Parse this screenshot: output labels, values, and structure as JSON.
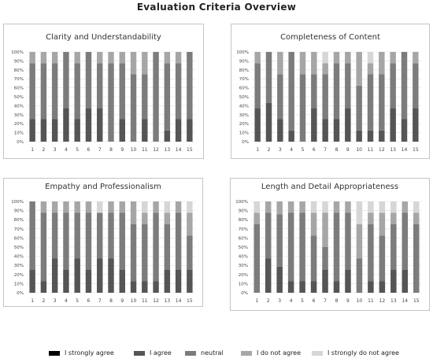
{
  "title": "Evaluation Criteria Overview",
  "colors": {
    "I strongly agree": "#000000",
    "I agree": "#555555",
    "neutral": "#7c7c7c",
    "I do not agree": "#a6a6a6",
    "I strongly do not agree": "#d6d6d6"
  },
  "legend": [
    "I strongly agree",
    "I agree",
    "neutral",
    "I do not agree",
    "I strongly do not agree"
  ],
  "chart_data": [
    {
      "type": "bar",
      "stacked": true,
      "title": "Clarity and Understandability",
      "categories": [
        "1",
        "2",
        "3",
        "4",
        "5",
        "6",
        "7",
        "8",
        "9",
        "10",
        "11",
        "12",
        "13",
        "14",
        "15"
      ],
      "yticks": [
        "0%",
        "10%",
        "20%",
        "30%",
        "40%",
        "50%",
        "60%",
        "70%",
        "80%",
        "90%",
        "100%"
      ],
      "ylim": [
        0,
        100
      ],
      "series": [
        {
          "name": "I strongly agree",
          "values": [
            0,
            0,
            0,
            0,
            0,
            0,
            0,
            0,
            0,
            0,
            0,
            0,
            0,
            0,
            0
          ]
        },
        {
          "name": "I agree",
          "values": [
            25,
            25,
            25,
            37.5,
            25,
            37.5,
            37.5,
            0,
            25,
            0,
            25,
            0,
            12.5,
            25,
            25
          ]
        },
        {
          "name": "neutral",
          "values": [
            62.5,
            62.5,
            62.5,
            62.5,
            62.5,
            62.5,
            50,
            87.5,
            62.5,
            75,
            50,
            100,
            75,
            62.5,
            75
          ]
        },
        {
          "name": "I do not agree",
          "values": [
            12.5,
            12.5,
            12.5,
            0,
            12.5,
            0,
            12.5,
            12.5,
            12.5,
            25,
            25,
            0,
            12.5,
            12.5,
            0
          ]
        },
        {
          "name": "I strongly do not agree",
          "values": [
            0,
            0,
            0,
            0,
            0,
            0,
            0,
            0,
            0,
            0,
            0,
            0,
            0,
            0,
            0
          ]
        }
      ]
    },
    {
      "type": "bar",
      "stacked": true,
      "title": "Completeness of Content",
      "categories": [
        "1",
        "2",
        "3",
        "4",
        "5",
        "6",
        "7",
        "8",
        "9",
        "10",
        "11",
        "12",
        "13",
        "14",
        "15"
      ],
      "yticks": [
        "0%",
        "10%",
        "20%",
        "30%",
        "40%",
        "50%",
        "60%",
        "70%",
        "80%",
        "90%",
        "100%"
      ],
      "ylim": [
        0,
        100
      ],
      "series": [
        {
          "name": "I strongly agree",
          "values": [
            0,
            0,
            0,
            0,
            0,
            0,
            0,
            0,
            0,
            0,
            0,
            0,
            0,
            0,
            0
          ]
        },
        {
          "name": "I agree",
          "values": [
            37.5,
            43,
            25,
            12.5,
            0,
            37.5,
            25,
            25,
            37.5,
            12.5,
            12.5,
            12.5,
            37.5,
            25,
            37.5
          ]
        },
        {
          "name": "neutral",
          "values": [
            50,
            57,
            50,
            87.5,
            75,
            37.5,
            50,
            62.5,
            50,
            50,
            62.5,
            62.5,
            50,
            75,
            50
          ]
        },
        {
          "name": "I do not agree",
          "values": [
            12.5,
            0,
            25,
            0,
            25,
            25,
            12.5,
            12.5,
            12.5,
            37.5,
            12.5,
            25,
            12.5,
            0,
            12.5
          ]
        },
        {
          "name": "I strongly do not agree",
          "values": [
            0,
            0,
            0,
            0,
            0,
            0,
            12.5,
            0,
            0,
            0,
            12.5,
            0,
            0,
            0,
            0
          ]
        }
      ]
    },
    {
      "type": "bar",
      "stacked": true,
      "title": "Empathy and Professionalism",
      "categories": [
        "1",
        "2",
        "3",
        "4",
        "5",
        "6",
        "7",
        "8",
        "9",
        "10",
        "11",
        "12",
        "13",
        "14",
        "15"
      ],
      "yticks": [
        "0%",
        "10%",
        "20%",
        "30%",
        "40%",
        "50%",
        "60%",
        "70%",
        "80%",
        "90%",
        "100%"
      ],
      "ylim": [
        0,
        100
      ],
      "series": [
        {
          "name": "I strongly agree",
          "values": [
            0,
            0,
            0,
            0,
            0,
            0,
            0,
            0,
            0,
            0,
            0,
            0,
            0,
            0,
            0
          ]
        },
        {
          "name": "I agree",
          "values": [
            25,
            12.5,
            37.5,
            25,
            37.5,
            25,
            37.5,
            37.5,
            25,
            12.5,
            12.5,
            12.5,
            25,
            25,
            25
          ]
        },
        {
          "name": "neutral",
          "values": [
            75,
            75,
            50,
            62.5,
            50,
            62.5,
            50,
            50,
            62.5,
            62.5,
            62.5,
            75,
            50,
            62.5,
            37.5
          ]
        },
        {
          "name": "I do not agree",
          "values": [
            0,
            12.5,
            12.5,
            12.5,
            12.5,
            12.5,
            0,
            12.5,
            12.5,
            25,
            12.5,
            12.5,
            12.5,
            12.5,
            25
          ]
        },
        {
          "name": "I strongly do not agree",
          "values": [
            0,
            0,
            0,
            0,
            0,
            0,
            12.5,
            0,
            0,
            0,
            12.5,
            0,
            12.5,
            0,
            12.5
          ]
        }
      ]
    },
    {
      "type": "bar",
      "stacked": true,
      "title": "Length and Detail Appropriateness",
      "categories": [
        "1",
        "2",
        "3",
        "4",
        "5",
        "6",
        "7",
        "8",
        "9",
        "10",
        "11",
        "12",
        "13",
        "14",
        "15"
      ],
      "yticks": [
        "0%",
        "10%",
        "20%",
        "30%",
        "40%",
        "50%",
        "60%",
        "70%",
        "80%",
        "90%",
        "100%"
      ],
      "ylim": [
        0,
        100
      ],
      "series": [
        {
          "name": "I strongly agree",
          "values": [
            0,
            0,
            0,
            0,
            0,
            0,
            0,
            0,
            0,
            0,
            0,
            0,
            0,
            0,
            0
          ]
        },
        {
          "name": "I agree",
          "values": [
            0,
            37.5,
            28.5,
            12.5,
            12.5,
            12.5,
            25,
            12.5,
            25,
            0,
            12.5,
            12.5,
            25,
            25,
            0
          ]
        },
        {
          "name": "neutral",
          "values": [
            75,
            50,
            57.5,
            75,
            75,
            50,
            25,
            75,
            62.5,
            37.5,
            62.5,
            50,
            50,
            62.5,
            75
          ]
        },
        {
          "name": "I do not agree",
          "values": [
            12.5,
            12.5,
            14,
            12.5,
            12.5,
            25,
            37.5,
            12.5,
            12.5,
            37.5,
            12.5,
            25,
            12.5,
            12.5,
            12.5
          ]
        },
        {
          "name": "I strongly do not agree",
          "values": [
            12.5,
            0,
            0,
            0,
            0,
            12.5,
            12.5,
            0,
            0,
            25,
            12.5,
            12.5,
            12.5,
            0,
            12.5
          ]
        }
      ]
    }
  ]
}
